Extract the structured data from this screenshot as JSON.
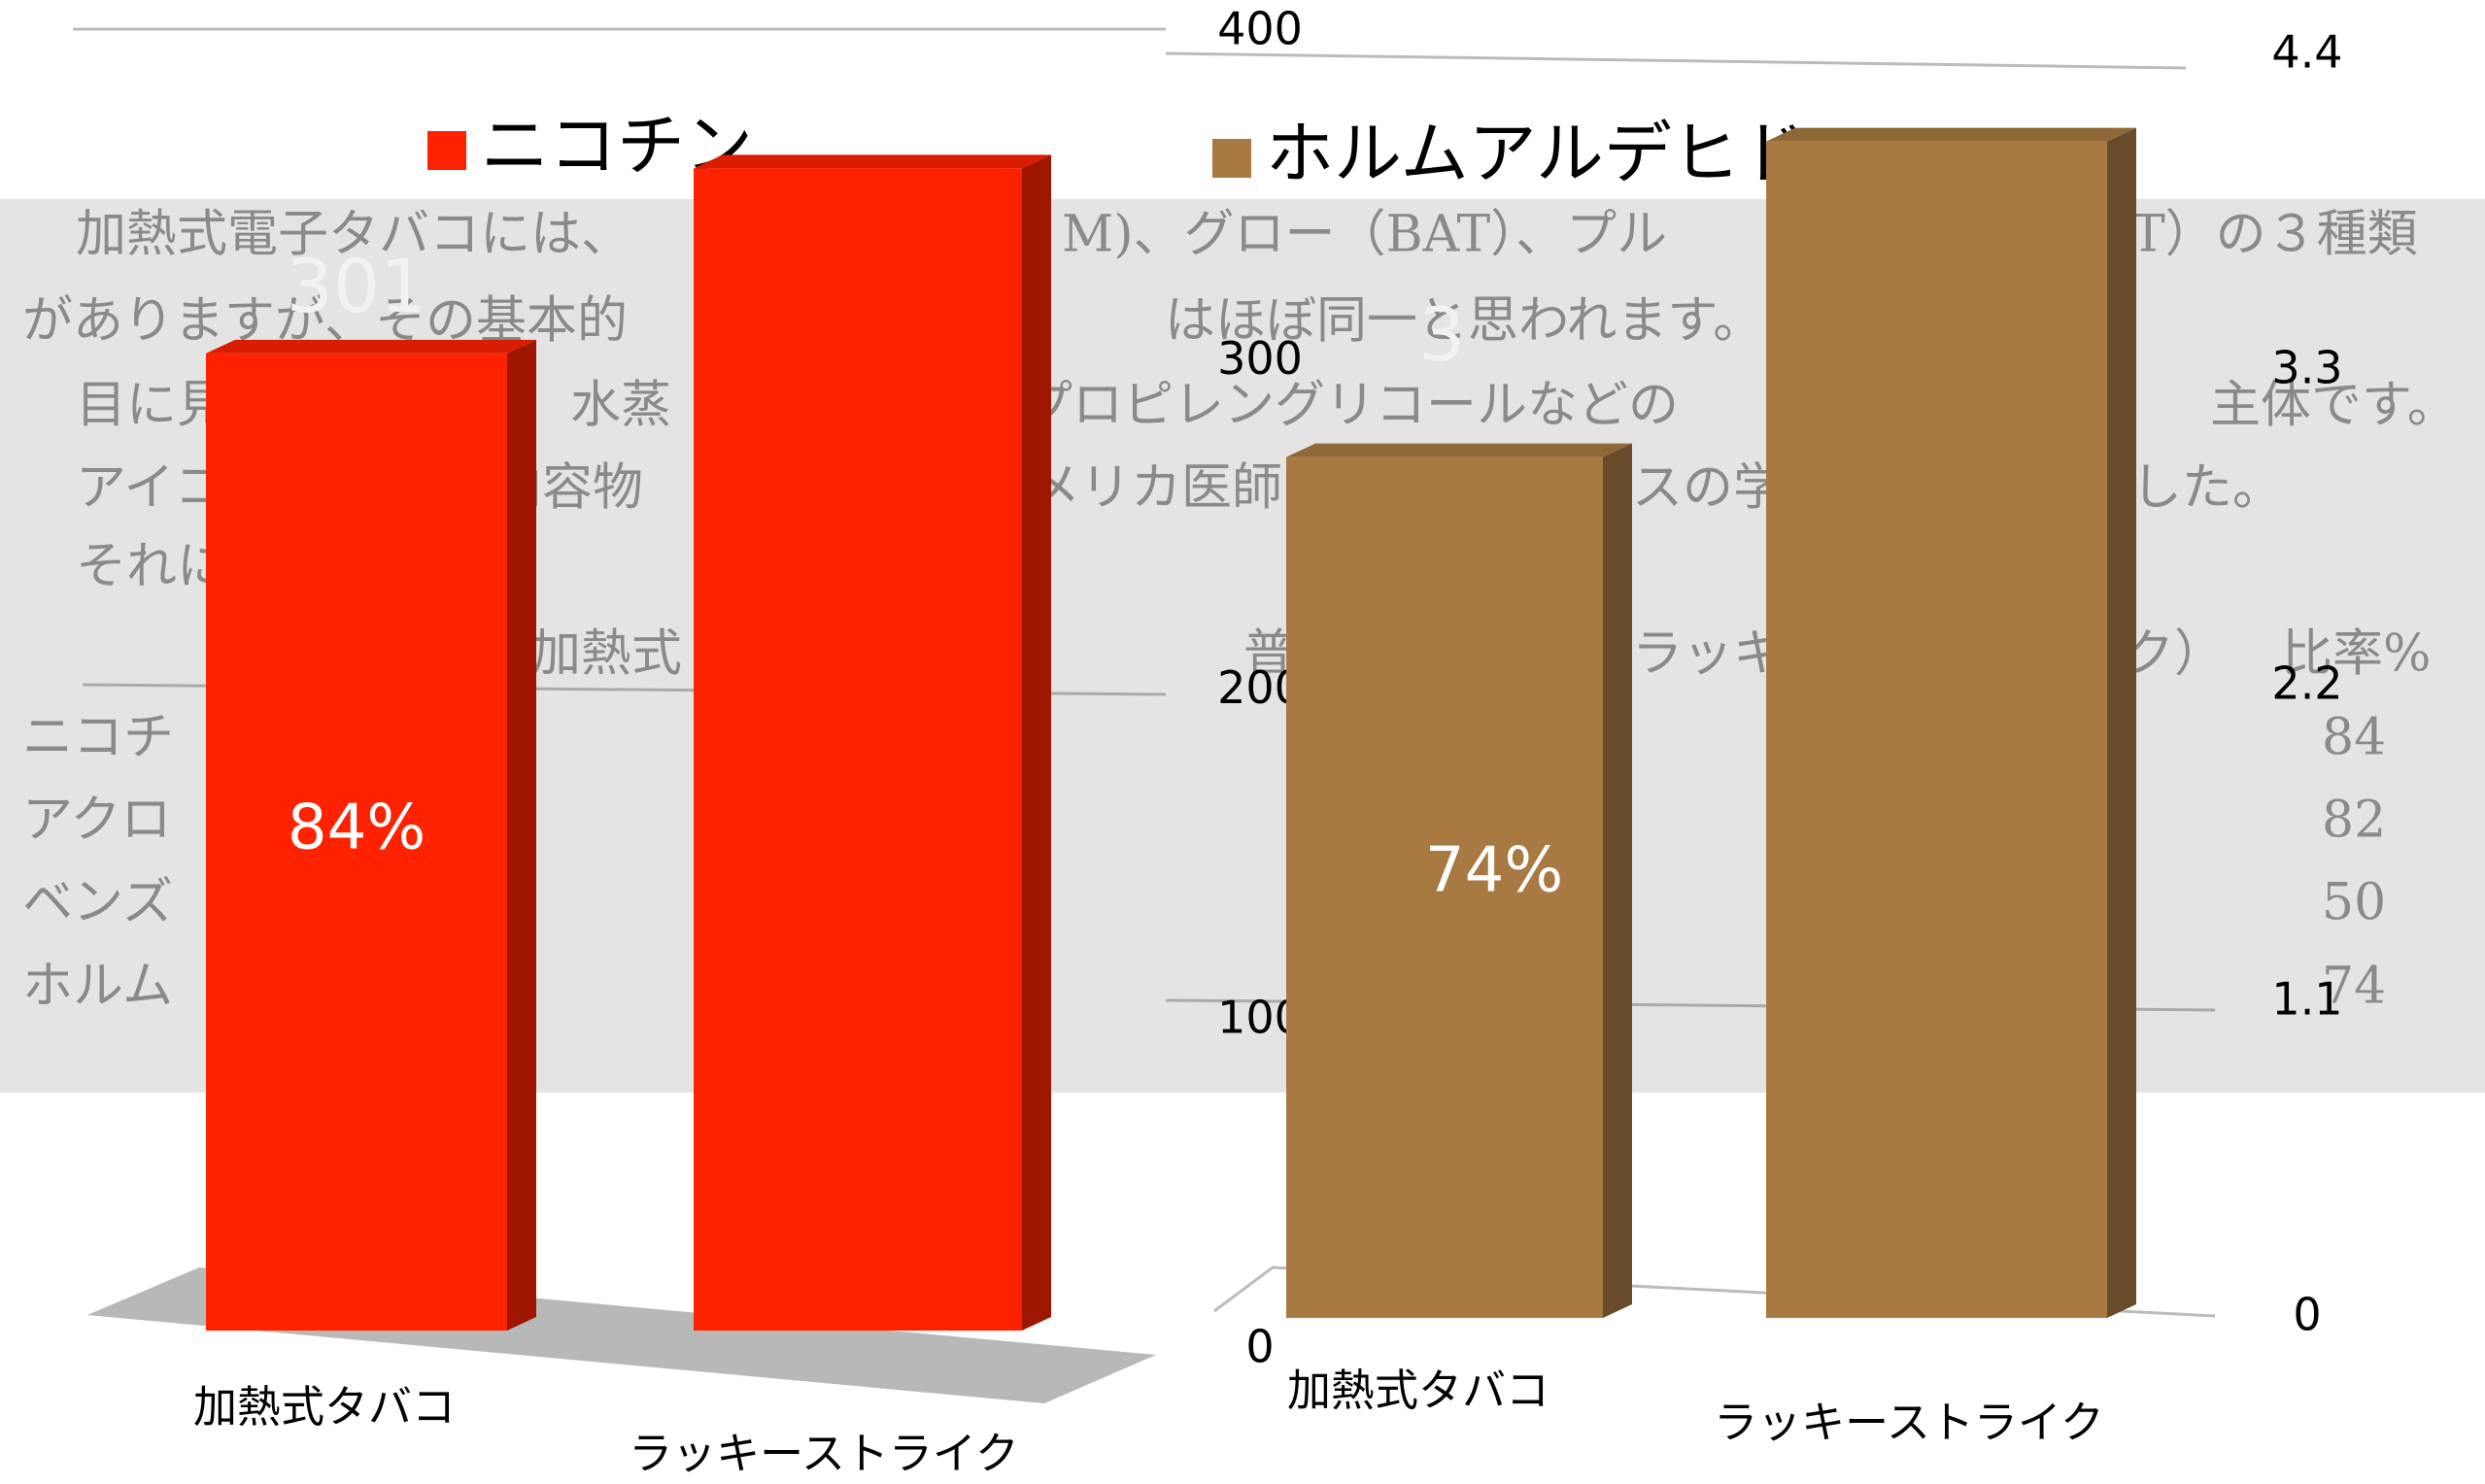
{
  "document": {
    "fragments": [
      "加熱式電子タバコには、",
      "M)、グロー（BAT）、プル",
      "T）の３種類",
      "がありますが、その基本的",
      "はほぼ同一と思われます。",
      "目に見",
      "水蒸",
      "プロピレングリコールなどの",
      "主体です。",
      "アイコ",
      "内容物",
      "メリカ医師",
      "スの学",
      "した。",
      "それに",
      "加熱式",
      "普",
      "ラッキ",
      "ク）",
      "比率%",
      "ニコチ",
      "84",
      "アクロ",
      "82",
      "ベンズ",
      "50",
      "ホルム",
      "74"
    ]
  },
  "chart_data": [
    {
      "type": "bar",
      "categories": [
        "加熱式タバコ",
        "ラッキーストライク"
      ],
      "ylim": [
        0,
        400
      ],
      "series": [
        {
          "name": "ニコチン",
          "color": "#ff2200",
          "values": [
            301,
            358
          ],
          "value_labels": [
            "301",
            null
          ]
        }
      ],
      "ratio_label": "84%"
    },
    {
      "type": "bar",
      "categories": [
        "加熱式タバコ",
        "ラッキーストライク"
      ],
      "ylim": [
        0,
        400
      ],
      "yticks": [
        0,
        100,
        200,
        300,
        400
      ],
      "y2lim": [
        0,
        4.4
      ],
      "y2ticks": [
        0,
        1.1,
        2.2,
        3.3,
        4.4
      ],
      "series": [
        {
          "name": "ホルムアルデヒド",
          "color": "#a87a42",
          "axis": "y2",
          "values": [
            3,
            4.1
          ],
          "value_labels": [
            "3",
            null
          ]
        }
      ],
      "ratio_label": "74%"
    }
  ]
}
